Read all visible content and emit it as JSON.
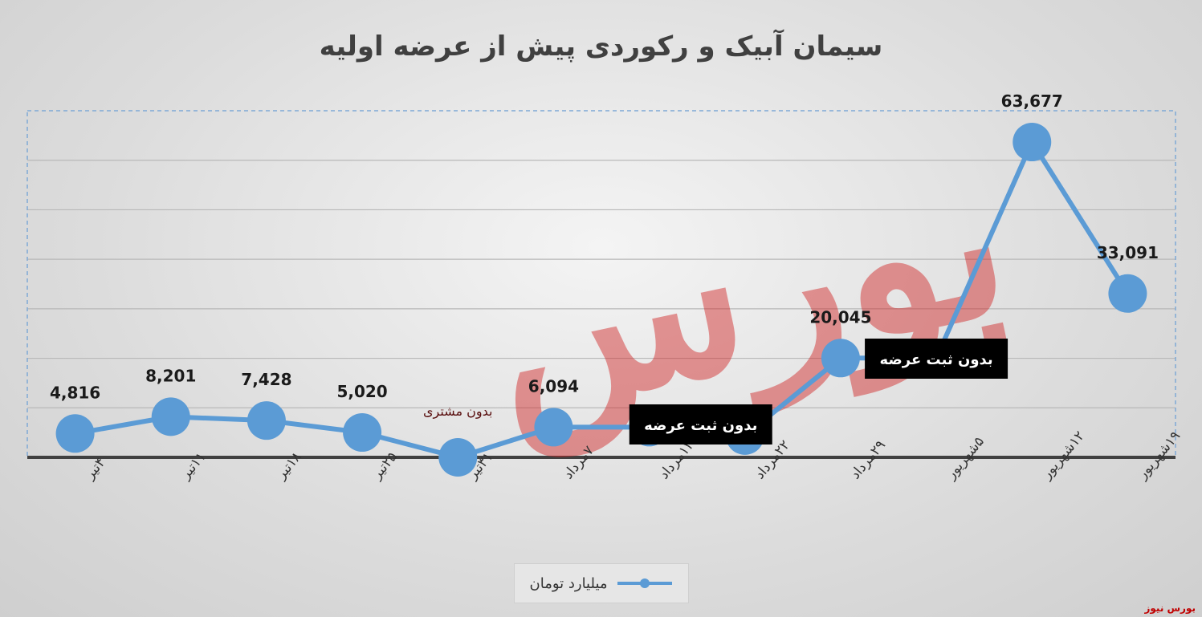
{
  "chart_data": {
    "type": "line",
    "title": "سیمان آبیک و رکوردی پیش از عرضه اولیه",
    "categories": [
      "۴تیر",
      "۱۱تیر",
      "۱۸تیر",
      "۲۵تیر",
      "۳۱تیر",
      "۷مرداد",
      "۱۴مرداد",
      "۲۲مرداد",
      "۲۹مرداد",
      "۵شهریور",
      "۱۲شهریور",
      "۱۹شهریور"
    ],
    "series": [
      {
        "name": "میلیارد تومان",
        "color": "#5b9bd5",
        "values": [
          4816,
          8201,
          7428,
          5020,
          0,
          6094,
          6094,
          4400,
          20045,
          20045,
          63677,
          33091
        ],
        "labels": [
          "4,816",
          "8,201",
          "7,428",
          "5,020",
          "",
          "6,094",
          "",
          "",
          "20,045",
          "",
          "63,677",
          "33,091"
        ]
      }
    ],
    "annotations": [
      {
        "text": "بدون مشتری",
        "category_index": 4,
        "style": "plain"
      },
      {
        "text": "بدون ثبت عرضه",
        "category_index": 7,
        "style": "box"
      },
      {
        "text": "بدون ثبت عرضه",
        "category_index": 9,
        "style": "box"
      }
    ],
    "ylim": [
      0,
      70000
    ],
    "grid": true,
    "legend": "bottom"
  },
  "watermark": {
    "text": "بورس نیوز",
    "color": "#c00000"
  }
}
